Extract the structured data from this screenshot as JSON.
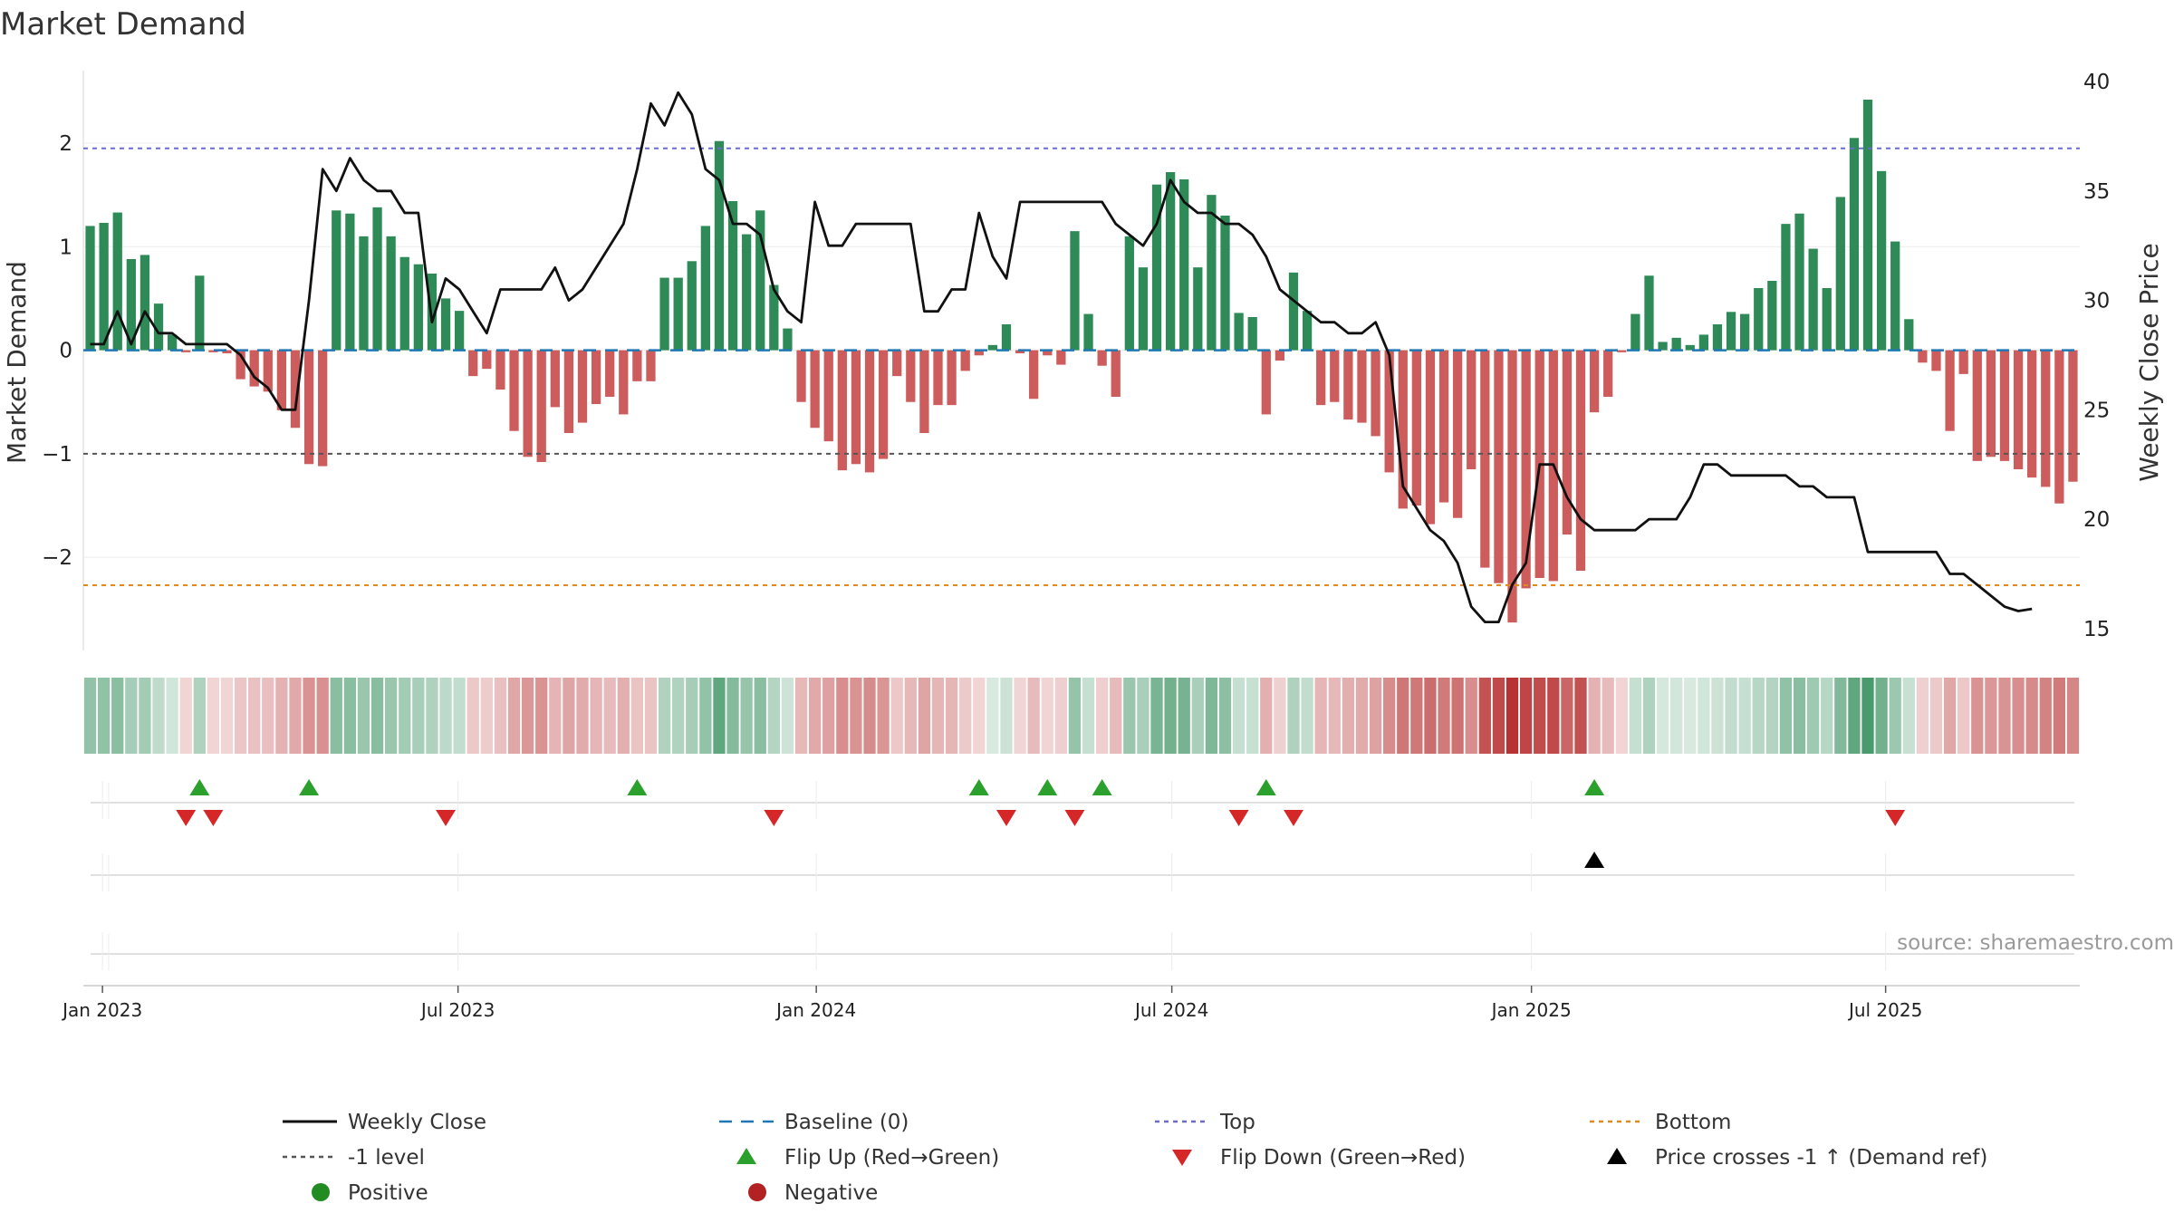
{
  "chart_data": {
    "type": "bar",
    "title": "Market Demand",
    "ylabel": "Market Demand",
    "y2label": "Weekly Close Price",
    "ylim": [
      -2.9,
      2.7
    ],
    "y2lim": [
      14.0,
      40.5
    ],
    "yticks": [
      -2,
      -1,
      0,
      1,
      2
    ],
    "ytick_labels": [
      "−2",
      "−1",
      "0",
      "1",
      "2"
    ],
    "y2ticks": [
      15,
      20,
      25,
      30,
      35,
      40
    ],
    "xticks": [
      {
        "label": "Jan 2023",
        "week": 1.4
      },
      {
        "label": "Jul 2023",
        "week": 27.4
      },
      {
        "label": "Jan 2024",
        "week": 53.6
      },
      {
        "label": "Jul 2024",
        "week": 79.6
      },
      {
        "label": "Jan 2025",
        "week": 105.9
      },
      {
        "label": "Jul 2025",
        "week": 131.8
      }
    ],
    "levels": {
      "top": 1.95,
      "bottom": -2.27,
      "minus_one": -1.0,
      "baseline": 0.0
    },
    "demand": [
      1.2,
      1.23,
      1.33,
      0.88,
      0.92,
      0.45,
      0.15,
      -0.02,
      0.72,
      -0.02,
      -0.03,
      -0.28,
      -0.35,
      -0.4,
      -0.58,
      -0.75,
      -1.1,
      -1.12,
      1.35,
      1.32,
      1.1,
      1.38,
      1.1,
      0.9,
      0.83,
      0.74,
      0.5,
      0.38,
      -0.25,
      -0.18,
      -0.38,
      -0.78,
      -1.03,
      -1.08,
      -0.55,
      -0.8,
      -0.7,
      -0.52,
      -0.45,
      -0.62,
      -0.3,
      -0.3,
      0.7,
      0.7,
      0.86,
      1.2,
      2.02,
      1.44,
      1.12,
      1.35,
      0.63,
      0.21,
      -0.5,
      -0.75,
      -0.88,
      -1.16,
      -1.1,
      -1.18,
      -1.05,
      -0.25,
      -0.5,
      -0.8,
      -0.53,
      -0.53,
      -0.2,
      -0.05,
      0.05,
      0.25,
      -0.03,
      -0.47,
      -0.05,
      -0.14,
      1.15,
      0.35,
      -0.15,
      -0.45,
      1.1,
      0.8,
      1.6,
      1.72,
      1.65,
      0.8,
      1.5,
      1.3,
      0.36,
      0.32,
      -0.62,
      -0.1,
      0.75,
      0.38,
      -0.53,
      -0.5,
      -0.67,
      -0.7,
      -0.83,
      -1.18,
      -1.53,
      -1.5,
      -1.68,
      -1.47,
      -1.62,
      -1.15,
      -2.1,
      -2.25,
      -2.63,
      -2.3,
      -2.2,
      -2.23,
      -1.78,
      -2.13,
      -0.6,
      -0.45,
      -0.02,
      0.35,
      0.72,
      0.08,
      0.12,
      0.05,
      0.15,
      0.25,
      0.37,
      0.35,
      0.6,
      0.67,
      1.22,
      1.32,
      0.98,
      0.6,
      1.48,
      2.05,
      2.42,
      1.73,
      1.05,
      0.3,
      -0.12,
      -0.2,
      -0.78,
      -0.23,
      -1.07,
      -1.03,
      -1.07,
      -1.15,
      -1.23,
      -1.32,
      -1.48,
      -1.27
    ],
    "close": [
      28.0,
      28.0,
      29.5,
      28.0,
      29.5,
      28.5,
      28.5,
      28.0,
      28.0,
      28.0,
      28.0,
      27.5,
      26.5,
      26.0,
      25.0,
      25.0,
      30.0,
      36.0,
      35.0,
      36.5,
      35.5,
      35.0,
      35.0,
      34.0,
      34.0,
      29.0,
      31.0,
      30.5,
      29.5,
      28.5,
      30.5,
      30.5,
      30.5,
      30.5,
      31.5,
      30.0,
      30.5,
      31.5,
      32.5,
      33.5,
      36.0,
      39.0,
      38.0,
      39.5,
      38.5,
      36.0,
      35.5,
      33.5,
      33.5,
      33.0,
      30.5,
      29.5,
      29.0,
      34.5,
      32.5,
      32.5,
      33.5,
      33.5,
      33.5,
      33.5,
      33.5,
      29.5,
      29.5,
      30.5,
      30.5,
      34.0,
      32.0,
      31.0,
      34.5,
      34.5,
      34.5,
      34.5,
      34.5,
      34.5,
      34.5,
      33.5,
      33.0,
      32.5,
      33.5,
      35.5,
      34.5,
      34.0,
      34.0,
      33.5,
      33.5,
      33.0,
      32.0,
      30.5,
      30.0,
      29.5,
      29.0,
      29.0,
      28.5,
      28.5,
      29.0,
      27.5,
      21.5,
      20.5,
      19.5,
      19.0,
      18.0,
      16.0,
      15.3,
      15.3,
      17.0,
      18.0,
      22.5,
      22.5,
      21.0,
      20.0,
      19.5,
      19.5,
      19.5,
      19.5,
      20.0,
      20.0,
      20.0,
      21.0,
      22.5,
      22.5,
      22.0,
      22.0,
      22.0,
      22.0,
      22.0,
      21.5,
      21.5,
      21.0,
      21.0,
      21.0,
      18.5,
      18.5,
      18.5,
      18.5,
      18.5,
      18.5,
      17.5,
      17.5,
      17.0,
      16.5,
      16.0,
      15.8,
      15.9
    ],
    "flip_up_weeks": [
      8,
      16,
      40,
      65,
      70,
      74,
      86,
      110
    ],
    "flip_down_weeks": [
      7,
      9,
      26,
      50,
      67,
      72,
      84,
      88,
      132
    ],
    "price_cross_weeks": [
      110
    ],
    "legend": [
      {
        "label": "Weekly Close",
        "marker": "solid-line",
        "color": "#111111"
      },
      {
        "label": "Baseline (0)",
        "marker": "dashed-line",
        "color": "#1f77b4"
      },
      {
        "label": "Top",
        "marker": "dotted-line",
        "color": "#6a6acf"
      },
      {
        "label": "Bottom",
        "marker": "dotted-line",
        "color": "#e08a1e"
      },
      {
        "label": "-1 level",
        "marker": "dotted-line",
        "color": "#555555"
      },
      {
        "label": "Flip Up (Red→Green)",
        "marker": "triangle-up",
        "color": "#2ca02c"
      },
      {
        "label": "Flip Down (Green→Red)",
        "marker": "triangle-down",
        "color": "#d62728"
      },
      {
        "label": "Price crosses -1 ↑ (Demand ref)",
        "marker": "triangle-up",
        "color": "#000000"
      },
      {
        "label": "Positive",
        "marker": "circle",
        "color": "#228b22"
      },
      {
        "label": "Negative",
        "marker": "circle",
        "color": "#b22222"
      }
    ],
    "legend_placement": "bottom",
    "source": "source: sharemaestro.com",
    "colors": {
      "positive": "#2e8b57",
      "negative": "#cd5c5c",
      "price": "#111111",
      "baseline": "#1f77b4",
      "top": "#6a6acf",
      "bottom": "#e08a1e",
      "minus_one": "#555555",
      "flip_up": "#2ca02c",
      "flip_down": "#d62728",
      "cross": "#000000"
    }
  }
}
